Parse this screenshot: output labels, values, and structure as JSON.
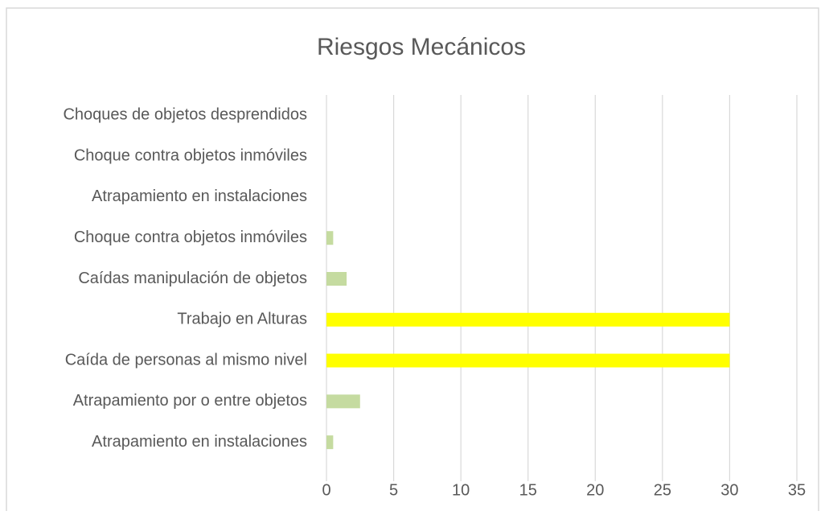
{
  "chart_data": {
    "type": "hbar",
    "title": "Riesgos Mecánicos",
    "categories": [
      "Choques de objetos desprendidos",
      "Choque contra objetos inmóviles",
      "Atrapamiento en instalaciones",
      "Choque contra objetos inmóviles",
      "Caídas manipulación de objetos",
      "Trabajo en Alturas",
      "Caída de personas al mismo nivel",
      "Atrapamiento por o entre objetos",
      "Atrapamiento en instalaciones"
    ],
    "values": [
      0,
      0,
      0,
      0.5,
      1.5,
      30,
      30,
      2.5,
      0.5
    ],
    "colors": [
      "#c5dba0",
      "#c5dba0",
      "#c5dba0",
      "#c5dba0",
      "#c5dba0",
      "#ffff00",
      "#ffff00",
      "#c5dba0",
      "#c5dba0"
    ],
    "xlim": [
      0,
      35
    ],
    "xticks": [
      0,
      5,
      10,
      15,
      20,
      25,
      30,
      35
    ],
    "grid": true
  }
}
